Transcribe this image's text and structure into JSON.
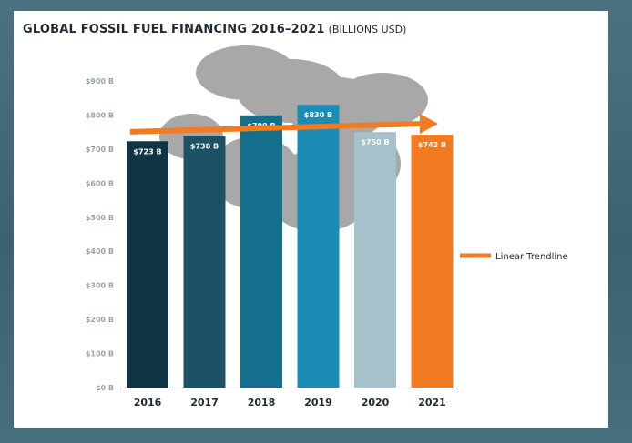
{
  "chart_data": {
    "type": "bar",
    "title": "GLOBAL FOSSIL FUEL FINANCING 2016–2021",
    "title_unit": "(BILLIONS USD)",
    "categories": [
      "2016",
      "2017",
      "2018",
      "2019",
      "2020",
      "2021"
    ],
    "values": [
      723,
      738,
      799,
      830,
      750,
      742
    ],
    "data_labels": [
      "$723 B",
      "$738 B",
      "$799 B",
      "$830 B",
      "$750 B",
      "$742 B"
    ],
    "bar_colors": [
      "#0f3444",
      "#1b5266",
      "#136f8c",
      "#1b8cb5",
      "#a7c1cb",
      "#f27b22"
    ],
    "ylim": [
      0,
      900
    ],
    "yticks": [
      0,
      100,
      200,
      300,
      400,
      500,
      600,
      700,
      800,
      900
    ],
    "ytick_labels": [
      "$0 B",
      "$100 B",
      "$200 B",
      "$300 B",
      "$400 B",
      "$500 B",
      "$600 B",
      "$700 B",
      "$800 B",
      "$900 B"
    ],
    "grid": false,
    "trendline": {
      "name": "Linear Trendline",
      "color": "#f27b22"
    },
    "legend": {
      "position": "right",
      "entries": [
        "Linear Trendline"
      ]
    }
  }
}
